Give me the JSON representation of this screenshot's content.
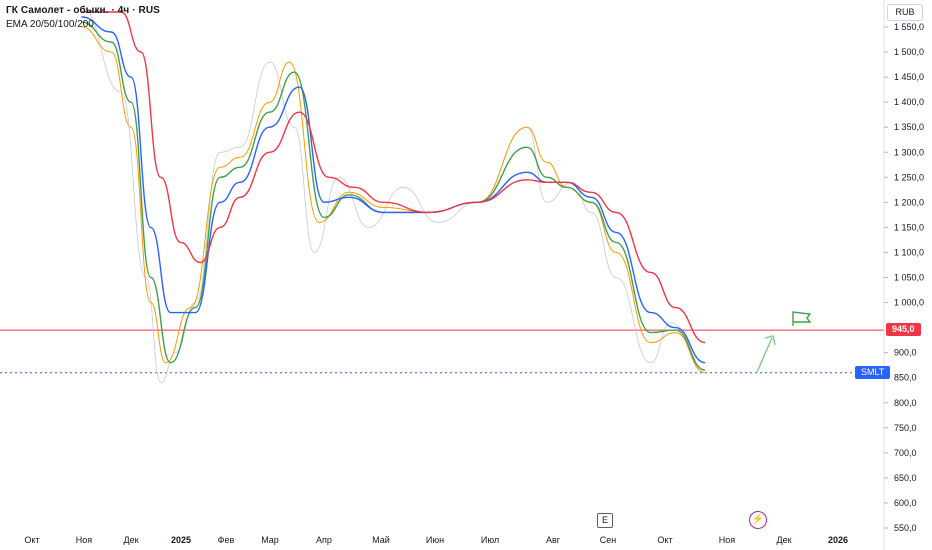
{
  "header": {
    "title": "ГК Самолет - обыкн. · 4ч · RUS",
    "legend": "EMA 20/50/100/200"
  },
  "axis": {
    "unit_label": "RUB",
    "y_ticks": [
      "1 550,0",
      "1 500,0",
      "1 450,0",
      "1 400,0",
      "1 350,0",
      "1 300,0",
      "1 250,0",
      "1 200,0",
      "1 150,0",
      "1 100,0",
      "1 050,0",
      "1 000,0",
      "900,0",
      "850,0",
      "800,0",
      "750,0",
      "700,0",
      "650,0",
      "600,0",
      "550,0"
    ],
    "x_ticks": [
      "Окт",
      "Ноя",
      "Дек",
      "2025",
      "Фев",
      "Мар",
      "Апр",
      "Май",
      "Июн",
      "Июл",
      "Авг",
      "Сен",
      "Окт",
      "Ноя",
      "Дек",
      "2026"
    ]
  },
  "price_labels": {
    "level": "945,0",
    "ticker": "SMLT"
  },
  "markers": {
    "earnings": "E"
  },
  "colors": {
    "ema20": "#ff9800",
    "ema50": "#43a047",
    "ema100": "#2962ff",
    "ema200": "#f23645",
    "level_line": "#f23645",
    "price_line": "#2962ff",
    "forecast": "#81c784"
  },
  "chart_data": {
    "type": "line",
    "title": "ГК Самолет - обыкн. · 4ч · RUS",
    "xlabel": "",
    "ylabel": "RUB",
    "ylim": [
      545,
      1580
    ],
    "x": [
      "Окт",
      "Ноя",
      "Дек",
      "2025",
      "Фев",
      "Мар",
      "Апр",
      "Май",
      "Июн",
      "Июл",
      "Авг",
      "Сен",
      "Окт",
      "Ноя"
    ],
    "horizontal_lines": [
      {
        "value": 945,
        "label": "945,0",
        "style": "solid",
        "color": "#f23645"
      },
      {
        "value": 860,
        "label": "SMLT",
        "style": "dotted",
        "color": "#2962ff"
      }
    ],
    "series": [
      {
        "name": "EMA 20",
        "points": [
          [
            1550,
            1.0
          ],
          [
            1500,
            1.6
          ],
          [
            1350,
            2.0
          ],
          [
            1000,
            2.4
          ],
          [
            880,
            2.7
          ],
          [
            990,
            3.2
          ],
          [
            1270,
            3.8
          ],
          [
            1290,
            4.2
          ],
          [
            1400,
            4.8
          ],
          [
            1480,
            5.2
          ],
          [
            1160,
            5.8
          ],
          [
            1220,
            6.4
          ],
          [
            1190,
            7.1
          ],
          [
            1180,
            8.0
          ],
          [
            1200,
            9.0
          ],
          [
            1350,
            10.0
          ],
          [
            1280,
            10.4
          ],
          [
            1230,
            10.8
          ],
          [
            1200,
            11.3
          ],
          [
            1100,
            11.8
          ],
          [
            920,
            12.5
          ],
          [
            940,
            13.0
          ],
          [
            860,
            13.6
          ]
        ]
      },
      {
        "name": "EMA 50",
        "points": [
          [
            1560,
            1.0
          ],
          [
            1520,
            1.6
          ],
          [
            1400,
            2.0
          ],
          [
            1050,
            2.4
          ],
          [
            880,
            2.8
          ],
          [
            990,
            3.3
          ],
          [
            1250,
            3.8
          ],
          [
            1270,
            4.2
          ],
          [
            1380,
            4.8
          ],
          [
            1460,
            5.3
          ],
          [
            1170,
            5.9
          ],
          [
            1215,
            6.4
          ],
          [
            1180,
            7.1
          ],
          [
            1180,
            8.0
          ],
          [
            1200,
            9.0
          ],
          [
            1310,
            10.0
          ],
          [
            1250,
            10.4
          ],
          [
            1230,
            10.8
          ],
          [
            1200,
            11.3
          ],
          [
            1120,
            11.8
          ],
          [
            940,
            12.5
          ],
          [
            945,
            13.0
          ],
          [
            865,
            13.6
          ]
        ]
      },
      {
        "name": "EMA 100",
        "points": [
          [
            1570,
            1.0
          ],
          [
            1540,
            1.6
          ],
          [
            1450,
            2.0
          ],
          [
            1150,
            2.4
          ],
          [
            980,
            2.8
          ],
          [
            980,
            3.3
          ],
          [
            1200,
            3.8
          ],
          [
            1240,
            4.2
          ],
          [
            1350,
            4.8
          ],
          [
            1430,
            5.4
          ],
          [
            1200,
            5.9
          ],
          [
            1210,
            6.4
          ],
          [
            1180,
            7.1
          ],
          [
            1180,
            8.0
          ],
          [
            1200,
            9.0
          ],
          [
            1260,
            10.0
          ],
          [
            1240,
            10.4
          ],
          [
            1240,
            10.8
          ],
          [
            1210,
            11.3
          ],
          [
            1140,
            11.8
          ],
          [
            980,
            12.5
          ],
          [
            950,
            13.0
          ],
          [
            880,
            13.6
          ]
        ]
      },
      {
        "name": "EMA 200",
        "points": [
          [
            1580,
            1.0
          ],
          [
            1580,
            1.8
          ],
          [
            1500,
            2.2
          ],
          [
            1250,
            2.6
          ],
          [
            1120,
            3.0
          ],
          [
            1080,
            3.4
          ],
          [
            1150,
            3.8
          ],
          [
            1210,
            4.2
          ],
          [
            1300,
            4.8
          ],
          [
            1380,
            5.4
          ],
          [
            1250,
            6.0
          ],
          [
            1230,
            6.5
          ],
          [
            1200,
            7.1
          ],
          [
            1180,
            8.0
          ],
          [
            1200,
            9.0
          ],
          [
            1245,
            10.0
          ],
          [
            1240,
            10.4
          ],
          [
            1240,
            10.8
          ],
          [
            1220,
            11.3
          ],
          [
            1180,
            11.8
          ],
          [
            1060,
            12.5
          ],
          [
            990,
            13.0
          ],
          [
            920,
            13.6
          ]
        ]
      },
      {
        "name": "price",
        "points": [
          [
            1590,
            1.0
          ],
          [
            1420,
            1.8
          ],
          [
            1050,
            2.3
          ],
          [
            840,
            2.6
          ],
          [
            900,
            2.9
          ],
          [
            1000,
            3.3
          ],
          [
            1300,
            3.8
          ],
          [
            1310,
            4.2
          ],
          [
            1480,
            4.8
          ],
          [
            1350,
            5.3
          ],
          [
            1100,
            5.7
          ],
          [
            1250,
            6.2
          ],
          [
            1150,
            6.8
          ],
          [
            1230,
            7.5
          ],
          [
            1160,
            8.2
          ],
          [
            1200,
            9.0
          ],
          [
            1350,
            10.0
          ],
          [
            1200,
            10.4
          ],
          [
            1240,
            10.9
          ],
          [
            1180,
            11.3
          ],
          [
            1050,
            11.8
          ],
          [
            880,
            12.5
          ],
          [
            960,
            12.9
          ],
          [
            860,
            13.6
          ]
        ]
      }
    ]
  }
}
